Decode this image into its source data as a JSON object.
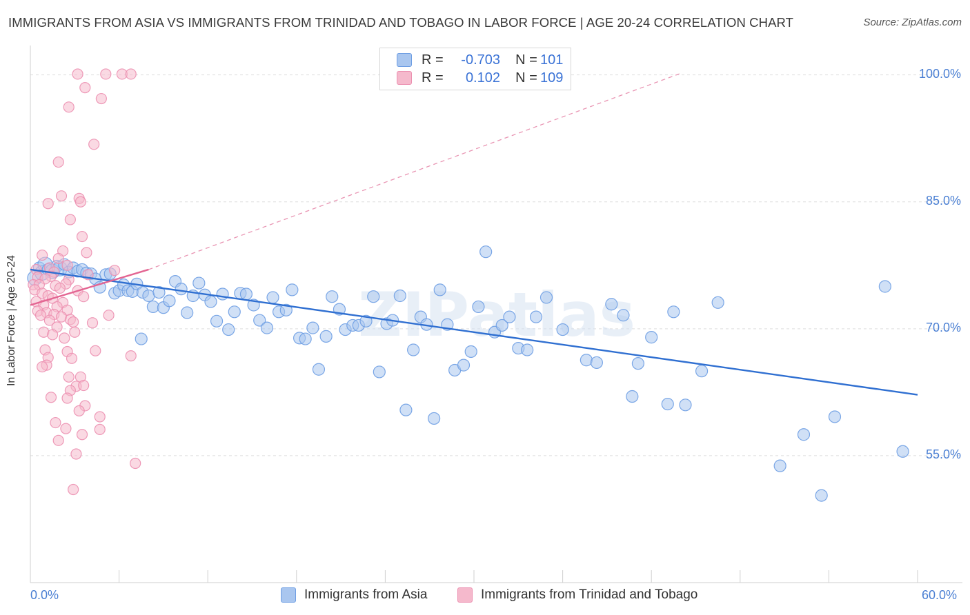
{
  "title": "IMMIGRANTS FROM ASIA VS IMMIGRANTS FROM TRINIDAD AND TOBAGO IN LABOR FORCE | AGE 20-24 CORRELATION CHART",
  "source": "Source: ZipAtlas.com",
  "watermark": "ZIPatlas",
  "legend": {
    "rows": [
      {
        "r_label": "R =",
        "r_value": "-0.703",
        "n_label": "N =",
        "n_value": "101",
        "color": "#a9c6ef"
      },
      {
        "r_label": "R =",
        "r_value": "0.102",
        "n_label": "N =",
        "n_value": "109",
        "color": "#f5b9cc"
      }
    ]
  },
  "bottom_legend": [
    {
      "label": "Immigrants from Asia",
      "color": "#a9c6ef"
    },
    {
      "label": "Immigrants from Trinidad and Tobago",
      "color": "#f5b9cc"
    }
  ],
  "chart_data": {
    "type": "scatter",
    "ylabel": "In Labor Force | Age 20-24",
    "xlim": [
      0,
      60
    ],
    "ylim": [
      40,
      102.5
    ],
    "x_tick_labels": [
      "0.0%",
      "60.0%"
    ],
    "y_ticks": [
      {
        "value": 100,
        "label": "100.0%"
      },
      {
        "value": 85,
        "label": "85.0%"
      },
      {
        "value": 70,
        "label": "70.0%"
      },
      {
        "value": 55,
        "label": "55.0%"
      }
    ],
    "grid": true,
    "series": [
      {
        "name": "Immigrants from Asia",
        "color": "#6d9de3",
        "fill": "#a9c6ef",
        "trend": {
          "x": [
            0,
            60
          ],
          "y": [
            77.0,
            62.2
          ],
          "color": "#2f6fd1",
          "dashed": false
        },
        "points": [
          [
            0.3,
            76.0
          ],
          [
            0.6,
            77.2
          ],
          [
            0.8,
            76.6
          ],
          [
            1.0,
            77.6
          ],
          [
            1.2,
            77.0
          ],
          [
            1.5,
            76.8
          ],
          [
            1.8,
            77.4
          ],
          [
            2.0,
            77.1
          ],
          [
            2.3,
            77.6
          ],
          [
            2.6,
            76.7
          ],
          [
            2.9,
            77.2
          ],
          [
            3.2,
            76.8
          ],
          [
            3.5,
            77.0
          ],
          [
            3.8,
            76.6
          ],
          [
            4.1,
            76.5
          ],
          [
            4.4,
            75.9
          ],
          [
            4.7,
            74.9
          ],
          [
            5.1,
            76.4
          ],
          [
            5.4,
            76.5
          ],
          [
            5.7,
            74.2
          ],
          [
            6.0,
            74.5
          ],
          [
            6.3,
            75.2
          ],
          [
            6.6,
            74.5
          ],
          [
            6.9,
            74.4
          ],
          [
            7.2,
            75.3
          ],
          [
            7.6,
            74.3
          ],
          [
            7.5,
            68.8
          ],
          [
            8.0,
            73.9
          ],
          [
            8.3,
            72.6
          ],
          [
            8.7,
            74.3
          ],
          [
            9.0,
            72.5
          ],
          [
            9.4,
            73.3
          ],
          [
            9.8,
            75.6
          ],
          [
            10.2,
            74.7
          ],
          [
            10.6,
            71.9
          ],
          [
            11.0,
            73.9
          ],
          [
            11.4,
            75.4
          ],
          [
            11.8,
            74.0
          ],
          [
            12.2,
            73.2
          ],
          [
            12.6,
            70.9
          ],
          [
            13.0,
            74.1
          ],
          [
            13.4,
            69.9
          ],
          [
            13.8,
            72.0
          ],
          [
            14.2,
            74.2
          ],
          [
            14.6,
            74.1
          ],
          [
            15.1,
            72.8
          ],
          [
            15.5,
            71.0
          ],
          [
            16.0,
            70.1
          ],
          [
            16.4,
            73.7
          ],
          [
            16.8,
            72.0
          ],
          [
            17.3,
            72.2
          ],
          [
            17.7,
            74.6
          ],
          [
            18.2,
            68.9
          ],
          [
            18.6,
            68.8
          ],
          [
            19.1,
            70.1
          ],
          [
            19.5,
            65.2
          ],
          [
            20.0,
            69.1
          ],
          [
            20.4,
            73.8
          ],
          [
            20.9,
            72.3
          ],
          [
            21.3,
            69.9
          ],
          [
            21.8,
            70.4
          ],
          [
            22.2,
            70.4
          ],
          [
            22.7,
            70.9
          ],
          [
            23.2,
            73.8
          ],
          [
            23.6,
            64.9
          ],
          [
            24.1,
            70.6
          ],
          [
            24.5,
            71.0
          ],
          [
            25.0,
            73.9
          ],
          [
            25.4,
            60.4
          ],
          [
            25.9,
            67.5
          ],
          [
            26.4,
            71.4
          ],
          [
            26.8,
            70.5
          ],
          [
            27.3,
            59.4
          ],
          [
            27.7,
            74.6
          ],
          [
            28.2,
            70.5
          ],
          [
            28.7,
            65.1
          ],
          [
            29.3,
            65.7
          ],
          [
            29.8,
            67.3
          ],
          [
            30.3,
            72.6
          ],
          [
            30.8,
            79.1
          ],
          [
            31.4,
            69.6
          ],
          [
            31.9,
            70.4
          ],
          [
            32.4,
            71.4
          ],
          [
            33.0,
            67.7
          ],
          [
            33.6,
            67.5
          ],
          [
            34.2,
            71.4
          ],
          [
            34.9,
            73.7
          ],
          [
            36.0,
            69.9
          ],
          [
            37.6,
            66.3
          ],
          [
            38.3,
            66.0
          ],
          [
            39.3,
            72.9
          ],
          [
            40.1,
            71.6
          ],
          [
            40.7,
            62.0
          ],
          [
            41.1,
            65.9
          ],
          [
            42.0,
            69.0
          ],
          [
            43.1,
            61.1
          ],
          [
            43.5,
            72.0
          ],
          [
            44.3,
            61.0
          ],
          [
            45.4,
            65.0
          ],
          [
            46.5,
            73.1
          ],
          [
            50.7,
            53.8
          ],
          [
            52.3,
            57.5
          ],
          [
            53.5,
            50.3
          ],
          [
            54.4,
            59.6
          ],
          [
            57.8,
            75.0
          ],
          [
            59.0,
            55.5
          ]
        ]
      },
      {
        "name": "Immigrants from Trinidad and Tobago",
        "color": "#ec8fb0",
        "fill": "#f5b9cc",
        "trend": {
          "x": [
            0,
            8.0
          ],
          "y": [
            72.8,
            77.0
          ],
          "color": "#e36592",
          "dashed": false
        },
        "trend_ext": {
          "x": [
            8.0,
            44.0
          ],
          "y": [
            77.0,
            100.2
          ],
          "color": "#e995b3",
          "dashed": true
        },
        "points": [
          [
            3.2,
            100.1
          ],
          [
            5.1,
            100.1
          ],
          [
            6.2,
            100.1
          ],
          [
            6.8,
            100.1
          ],
          [
            3.7,
            98.5
          ],
          [
            4.8,
            97.2
          ],
          [
            2.6,
            96.2
          ],
          [
            4.3,
            91.8
          ],
          [
            1.9,
            89.7
          ],
          [
            2.1,
            85.7
          ],
          [
            3.3,
            85.4
          ],
          [
            3.4,
            85.0
          ],
          [
            1.2,
            84.8
          ],
          [
            2.7,
            82.9
          ],
          [
            3.5,
            80.9
          ],
          [
            2.2,
            79.2
          ],
          [
            3.8,
            79.0
          ],
          [
            0.8,
            78.7
          ],
          [
            1.9,
            78.3
          ],
          [
            2.5,
            77.5
          ],
          [
            0.4,
            77.0
          ],
          [
            1.3,
            77.2
          ],
          [
            1.6,
            76.7
          ],
          [
            5.7,
            76.9
          ],
          [
            0.5,
            76.1
          ],
          [
            1.4,
            76.2
          ],
          [
            3.9,
            76.4
          ],
          [
            1.0,
            75.9
          ],
          [
            2.6,
            75.8
          ],
          [
            0.2,
            75.2
          ],
          [
            0.6,
            75.2
          ],
          [
            1.7,
            75.1
          ],
          [
            2.4,
            75.3
          ],
          [
            2.0,
            74.8
          ],
          [
            3.2,
            74.5
          ],
          [
            0.3,
            74.6
          ],
          [
            0.8,
            74.2
          ],
          [
            1.2,
            73.9
          ],
          [
            1.5,
            73.6
          ],
          [
            2.2,
            73.1
          ],
          [
            3.6,
            73.8
          ],
          [
            0.4,
            73.2
          ],
          [
            0.9,
            72.8
          ],
          [
            1.8,
            72.6
          ],
          [
            2.5,
            72.2
          ],
          [
            0.5,
            72.1
          ],
          [
            1.1,
            71.9
          ],
          [
            1.6,
            71.7
          ],
          [
            2.1,
            71.4
          ],
          [
            2.7,
            71.1
          ],
          [
            0.7,
            71.6
          ],
          [
            5.3,
            71.6
          ],
          [
            1.3,
            71.0
          ],
          [
            2.9,
            70.8
          ],
          [
            4.2,
            70.7
          ],
          [
            1.8,
            70.2
          ],
          [
            0.9,
            69.6
          ],
          [
            1.5,
            69.3
          ],
          [
            2.3,
            68.9
          ],
          [
            3.0,
            69.6
          ],
          [
            1.0,
            67.5
          ],
          [
            2.5,
            67.3
          ],
          [
            4.4,
            67.4
          ],
          [
            1.2,
            66.6
          ],
          [
            2.8,
            66.5
          ],
          [
            6.8,
            66.8
          ],
          [
            1.1,
            65.7
          ],
          [
            0.8,
            65.5
          ],
          [
            3.4,
            64.3
          ],
          [
            2.6,
            64.3
          ],
          [
            3.1,
            63.2
          ],
          [
            2.7,
            62.7
          ],
          [
            3.6,
            63.3
          ],
          [
            1.4,
            61.9
          ],
          [
            2.5,
            61.8
          ],
          [
            3.7,
            60.9
          ],
          [
            3.3,
            60.3
          ],
          [
            4.7,
            59.6
          ],
          [
            1.7,
            58.9
          ],
          [
            2.4,
            58.2
          ],
          [
            4.7,
            58.1
          ],
          [
            3.5,
            57.5
          ],
          [
            1.9,
            56.8
          ],
          [
            3.1,
            55.2
          ],
          [
            7.1,
            54.1
          ],
          [
            2.9,
            51.0
          ]
        ]
      }
    ]
  }
}
